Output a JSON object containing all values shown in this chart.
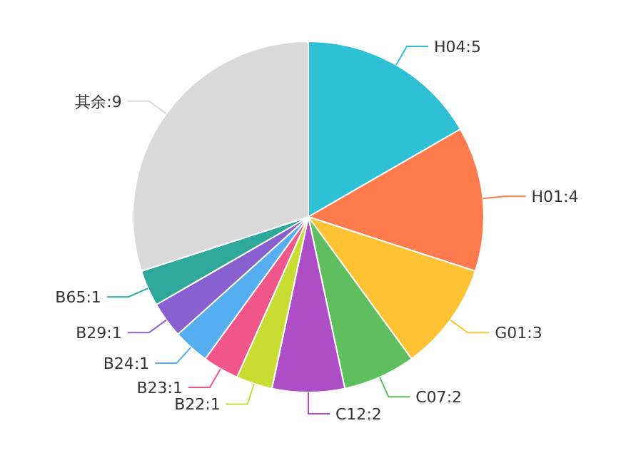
{
  "chart_data": {
    "type": "pie",
    "categories": [
      "H04",
      "H01",
      "G01",
      "C07",
      "C12",
      "B22",
      "B23",
      "B24",
      "B29",
      "B65",
      "其余"
    ],
    "values": [
      5,
      4,
      3,
      2,
      2,
      1,
      1,
      1,
      1,
      1,
      9
    ],
    "colors": [
      "#2ec0d4",
      "#ff7a4d",
      "#ffc233",
      "#5fbf5f",
      "#ae4ec6",
      "#c9dc32",
      "#f0568a",
      "#55aef0",
      "#8860d0",
      "#2ea89a",
      "#d9d9d9"
    ],
    "value_labels": [
      ":5",
      ":4",
      ":3",
      ":2",
      ":2",
      ":1",
      ":1",
      ":1",
      ":1",
      ":1",
      ":9"
    ]
  }
}
